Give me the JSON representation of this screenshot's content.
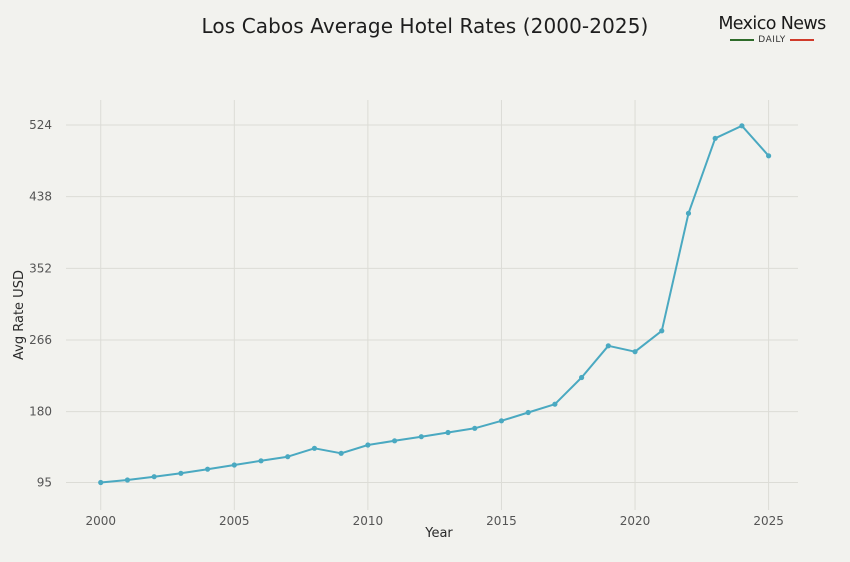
{
  "chart_data": {
    "type": "line",
    "title": "Los Cabos Average Hotel Rates (2000-2025)",
    "xlabel": "Year",
    "ylabel": "Avg Rate USD",
    "xlim": [
      1998.7,
      2026.1
    ],
    "ylim": [
      62,
      554
    ],
    "x_ticks": [
      2000,
      2005,
      2010,
      2015,
      2020,
      2025
    ],
    "y_ticks": [
      95,
      180,
      266,
      352,
      438,
      524
    ],
    "grid": true,
    "line_color": "#4aa9c1",
    "series": [
      {
        "x": [
          2000,
          2001,
          2002,
          2003,
          2004,
          2005,
          2006,
          2007,
          2008,
          2009,
          2010,
          2011,
          2012,
          2013,
          2014,
          2015,
          2016,
          2017,
          2018,
          2019,
          2020,
          2021,
          2022,
          2023,
          2024,
          2025
        ],
        "values": [
          95,
          98,
          102,
          106,
          111,
          116,
          121,
          126,
          136,
          130,
          140,
          145,
          150,
          155,
          160,
          169,
          179,
          189,
          221,
          259,
          252,
          277,
          418,
          508,
          523,
          487
        ]
      }
    ]
  },
  "logo": {
    "name": "Mexico News",
    "sub": "DAILY",
    "green": "#2e6b2a",
    "red": "#d03a2a"
  }
}
